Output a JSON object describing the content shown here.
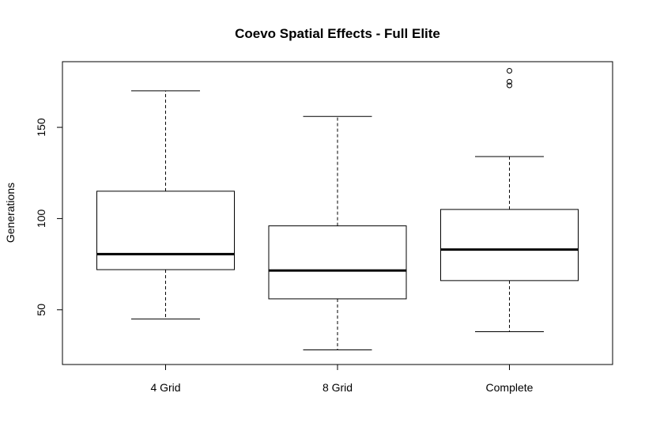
{
  "chart_data": {
    "type": "box",
    "title": "Coevo Spatial Effects - Full Elite",
    "xlabel": "",
    "ylabel": "Generations",
    "categories": [
      "4 Grid",
      "8 Grid",
      "Complete"
    ],
    "yticks": [
      50,
      100,
      150
    ],
    "ylim": [
      20,
      186
    ],
    "grid": false,
    "boxes": [
      {
        "name": "4 Grid",
        "whisker_low": 45,
        "q1": 72,
        "median": 80.5,
        "q3": 115,
        "whisker_high": 170,
        "outliers": []
      },
      {
        "name": "8 Grid",
        "whisker_low": 28,
        "q1": 56,
        "median": 71.5,
        "q3": 96,
        "whisker_high": 156,
        "outliers": []
      },
      {
        "name": "Complete",
        "whisker_low": 38,
        "q1": 66,
        "median": 83,
        "q3": 105,
        "whisker_high": 134,
        "outliers": [
          173,
          175,
          181
        ]
      }
    ]
  }
}
